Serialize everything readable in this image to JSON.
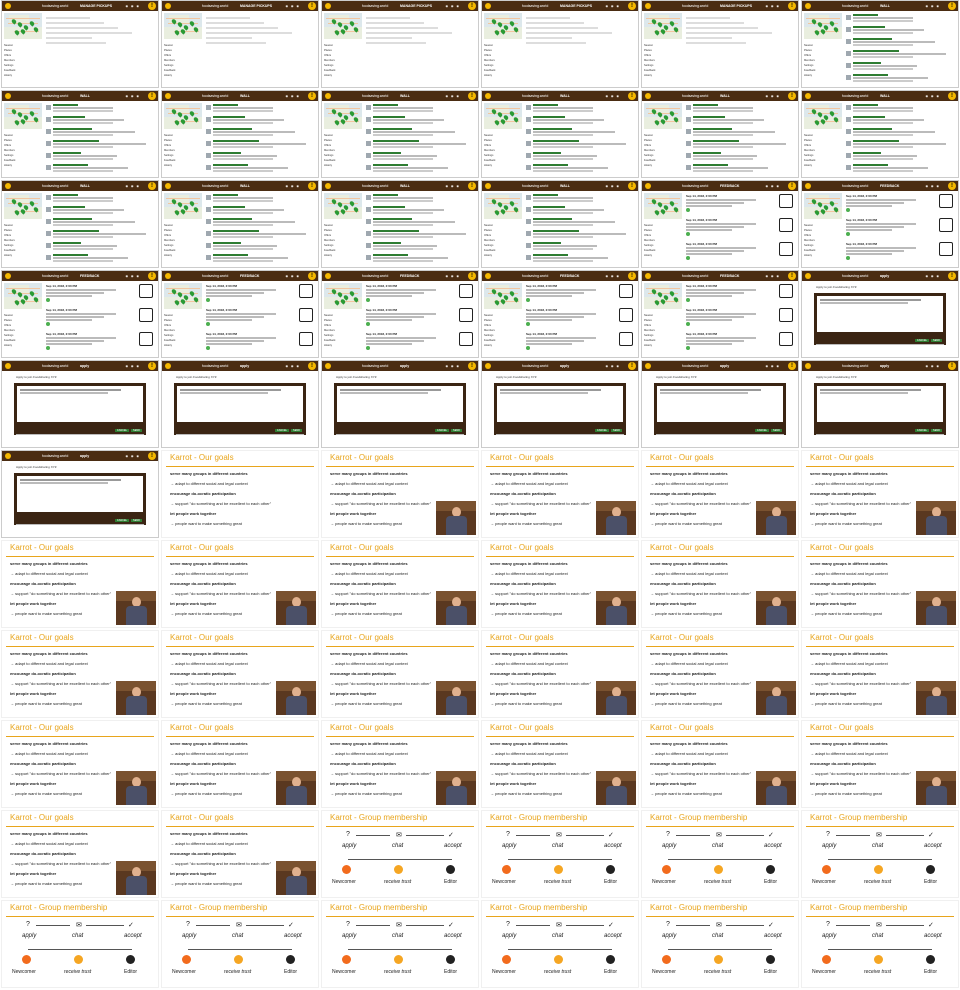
{
  "screenshot": {
    "type": "contact-sheet",
    "columns": 6,
    "tiles_total": 66
  },
  "app": {
    "window_title": "foodsaving.world",
    "brand": "Karrot",
    "sidebar": [
      "Newest",
      "Places",
      "Offers",
      "Members",
      "Settings",
      "Feedback",
      "History"
    ],
    "pages": {
      "pickups": {
        "title": "MANAGE PICKUPS"
      },
      "wall": {
        "title": "WALL"
      },
      "feedback": {
        "title": "FEEDBACK"
      },
      "apply": {
        "title": "apply",
        "dialog_heading": "Apply to join Foodsharing XYZ"
      }
    },
    "modal_buttons": {
      "cancel": "CANCEL",
      "send": "SEND"
    },
    "feedback_date": "Sep 14, 2018, 2:00 PM",
    "warning_glyph": "!"
  },
  "slides": {
    "goals": {
      "title": "Karrot - Our goals",
      "lines": [
        {
          "text": "serve many groups in different countries",
          "bold": true
        },
        {
          "text": "→ adapt to different social and legal context",
          "bold": false
        },
        {
          "text": "encourage do-ocratic participation",
          "bold": true
        },
        {
          "text": "→ support \"do something and be excellent to each other\"",
          "bold": false
        },
        {
          "text": "let people work together",
          "bold": true
        },
        {
          "text": "→ people want to make something great",
          "bold": false
        }
      ]
    },
    "membership": {
      "title": "Karrot - Group membership",
      "steps": [
        "apply",
        "chat",
        "accept"
      ],
      "step_icons": [
        "?",
        "✉",
        "✓"
      ],
      "trust_label": "receive trust",
      "roles": [
        "Newcomer",
        "Editor"
      ]
    }
  },
  "tile_plan": [
    "pickups",
    "pickups",
    "pickups",
    "pickups",
    "pickups",
    "wall",
    "wall",
    "wall",
    "wall",
    "wall",
    "wall",
    "wall",
    "wall",
    "wall",
    "wall",
    "wall",
    "feedback",
    "feedback",
    "feedback",
    "feedback",
    "feedback",
    "feedback",
    "feedback",
    "apply",
    "apply",
    "apply",
    "apply",
    "apply",
    "apply",
    "apply",
    "apply",
    "goals-nospk",
    "goals",
    "goals",
    "goals",
    "goals",
    "goals",
    "goals",
    "goals",
    "goals",
    "goals",
    "goals",
    "goals",
    "goals",
    "goals",
    "goals",
    "goals",
    "goals",
    "goals",
    "goals",
    "goals",
    "goals",
    "goals",
    "goals",
    "goals",
    "goals",
    "membership",
    "membership",
    "membership",
    "membership",
    "membership",
    "membership",
    "membership",
    "membership",
    "membership",
    "membership"
  ]
}
